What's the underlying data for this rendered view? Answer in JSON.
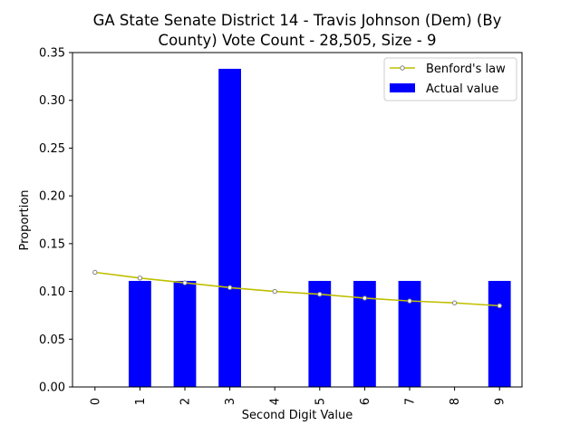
{
  "chart_data": {
    "type": "bar",
    "title_lines": [
      "GA State Senate District 14 - Travis Johnson (Dem) (By",
      "County) Vote Count - 28,505, Size - 9"
    ],
    "xlabel": "Second Digit Value",
    "ylabel": "Proportion",
    "categories": [
      "0",
      "1",
      "2",
      "3",
      "4",
      "5",
      "6",
      "7",
      "8",
      "9"
    ],
    "ylim": [
      0,
      0.35
    ],
    "yticks": [
      "0.00",
      "0.05",
      "0.10",
      "0.15",
      "0.20",
      "0.25",
      "0.30",
      "0.35"
    ],
    "grid": false,
    "legend_position": "top-right",
    "series": [
      {
        "name": "Actual value",
        "type": "bar",
        "color": "#0000ff",
        "values": [
          0.0,
          0.111,
          0.111,
          0.333,
          0.0,
          0.111,
          0.111,
          0.111,
          0.0,
          0.111
        ]
      },
      {
        "name": "Benford's law",
        "type": "line",
        "color": "#bfbf00",
        "marker_color": "#808080",
        "values": [
          0.12,
          0.114,
          0.109,
          0.104,
          0.1,
          0.097,
          0.093,
          0.09,
          0.088,
          0.085
        ]
      }
    ]
  }
}
